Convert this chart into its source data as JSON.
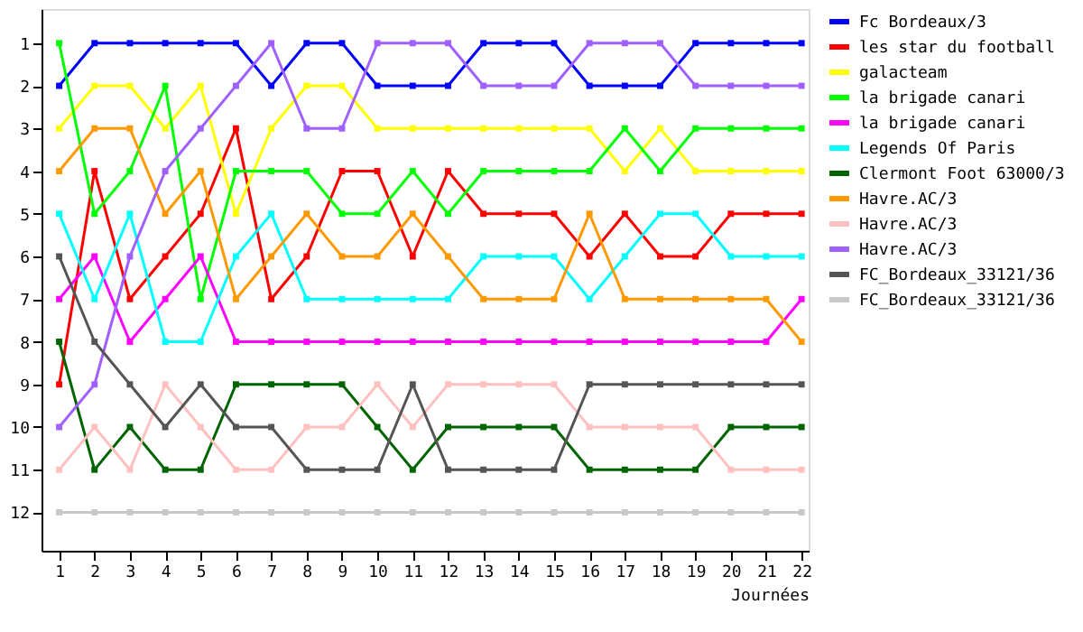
{
  "chart_data": {
    "type": "line",
    "xlabel": "Journées",
    "x": [
      1,
      2,
      3,
      4,
      5,
      6,
      7,
      8,
      9,
      10,
      11,
      12,
      13,
      14,
      15,
      16,
      17,
      18,
      19,
      20,
      21,
      22
    ],
    "xlim": [
      0.5,
      22.2
    ],
    "xticks": [
      1,
      2,
      3,
      4,
      5,
      6,
      7,
      8,
      9,
      10,
      11,
      12,
      13,
      14,
      15,
      16,
      17,
      18,
      19,
      20,
      21,
      22
    ],
    "ylim": [
      12.9,
      0.2
    ],
    "yticks": [
      1,
      2,
      3,
      4,
      5,
      6,
      7,
      8,
      9,
      10,
      11,
      12
    ],
    "grid": false,
    "legend": "right",
    "marker": "square",
    "line_style": "solid",
    "series": [
      {
        "name": "Fc Bordeaux/3",
        "color": "#0000ff",
        "values": [
          2,
          1,
          1,
          1,
          1,
          1,
          2,
          1,
          1,
          2,
          2,
          2,
          1,
          1,
          1,
          2,
          2,
          2,
          1,
          1,
          1,
          1
        ]
      },
      {
        "name": "les star du football",
        "color": "#ff0000",
        "values": [
          9,
          4,
          7,
          6,
          5,
          3,
          7,
          6,
          4,
          4,
          6,
          4,
          5,
          5,
          5,
          6,
          5,
          6,
          6,
          5,
          5,
          5
        ]
      },
      {
        "name": "galacteam",
        "color": "#ffff00",
        "values": [
          3,
          2,
          2,
          3,
          2,
          5,
          3,
          2,
          2,
          3,
          3,
          3,
          3,
          3,
          3,
          3,
          4,
          3,
          4,
          4,
          4,
          4
        ]
      },
      {
        "name": "la brigade canari",
        "color": "#00ff00",
        "values": [
          1,
          5,
          4,
          2,
          7,
          4,
          4,
          4,
          5,
          5,
          4,
          5,
          4,
          4,
          4,
          4,
          3,
          4,
          3,
          3,
          3,
          3
        ]
      },
      {
        "name": "la brigade canari",
        "color": "#ff00ff",
        "values": [
          7,
          6,
          8,
          7,
          6,
          8,
          8,
          8,
          8,
          8,
          8,
          8,
          8,
          8,
          8,
          8,
          8,
          8,
          8,
          8,
          8,
          7
        ]
      },
      {
        "name": "Legends Of Paris",
        "color": "#00ffff",
        "values": [
          5,
          7,
          5,
          8,
          8,
          6,
          5,
          7,
          7,
          7,
          7,
          7,
          6,
          6,
          6,
          7,
          6,
          5,
          5,
          6,
          6,
          6
        ]
      },
      {
        "name": "Clermont Foot 63000/3",
        "color": "#006400",
        "values": [
          8,
          11,
          10,
          11,
          11,
          9,
          9,
          9,
          9,
          10,
          11,
          10,
          10,
          10,
          10,
          11,
          11,
          11,
          11,
          10,
          10,
          10
        ]
      },
      {
        "name": "Havre.AC/3",
        "color": "#ff9900",
        "values": [
          4,
          3,
          3,
          5,
          4,
          7,
          6,
          5,
          6,
          6,
          5,
          6,
          7,
          7,
          7,
          5,
          7,
          7,
          7,
          7,
          7,
          8
        ]
      },
      {
        "name": "Havre.AC/3",
        "color": "#ffc0c0",
        "values": [
          11,
          10,
          11,
          9,
          10,
          11,
          11,
          10,
          10,
          9,
          10,
          9,
          9,
          9,
          9,
          10,
          10,
          10,
          10,
          11,
          11,
          11
        ]
      },
      {
        "name": "Havre.AC/3",
        "color": "#a060ff",
        "values": [
          10,
          9,
          6,
          4,
          3,
          2,
          1,
          3,
          3,
          1,
          1,
          1,
          2,
          2,
          2,
          1,
          1,
          1,
          2,
          2,
          2,
          2
        ]
      },
      {
        "name": "FC_Bordeaux_33121/36",
        "color": "#555555",
        "values": [
          6,
          8,
          9,
          10,
          9,
          10,
          10,
          11,
          11,
          11,
          9,
          11,
          11,
          11,
          11,
          9,
          9,
          9,
          9,
          9,
          9,
          9
        ]
      },
      {
        "name": "FC_Bordeaux_33121/36",
        "color": "#c8c8c8",
        "values": [
          12,
          12,
          12,
          12,
          12,
          12,
          12,
          12,
          12,
          12,
          12,
          12,
          12,
          12,
          12,
          12,
          12,
          12,
          12,
          12,
          12,
          12
        ]
      }
    ]
  }
}
